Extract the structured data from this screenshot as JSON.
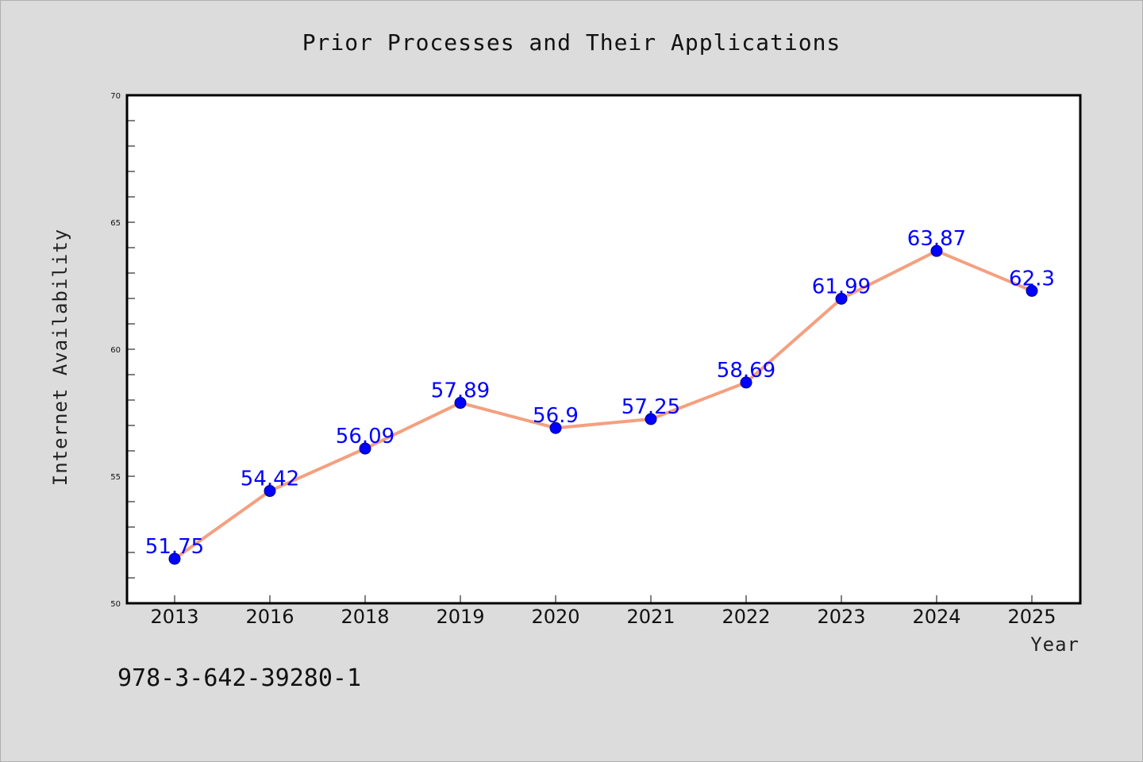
{
  "chart_data": {
    "type": "line",
    "title": "Prior Processes and Their Applications",
    "xlabel": "Year",
    "ylabel": "Internet Availability",
    "categories": [
      "2013",
      "2016",
      "2018",
      "2019",
      "2020",
      "2021",
      "2022",
      "2023",
      "2024",
      "2025"
    ],
    "series": [
      {
        "values": [
          51.75,
          54.42,
          56.09,
          57.89,
          56.9,
          57.25,
          58.69,
          61.99,
          63.87,
          62.3
        ],
        "labels": [
          "51.75",
          "54.42",
          "56.09",
          "57.89",
          "56.9",
          "57.25",
          "58.69",
          "61.99",
          "63.87",
          "62.3"
        ],
        "line_color": "#f4a080",
        "marker_color": "#0000ff"
      }
    ],
    "ylim": [
      50,
      70
    ],
    "yticks": [
      "50",
      "55",
      "60",
      "65",
      "70"
    ],
    "grid": false,
    "legend": "none"
  },
  "footnote": "978-3-642-39280-1"
}
